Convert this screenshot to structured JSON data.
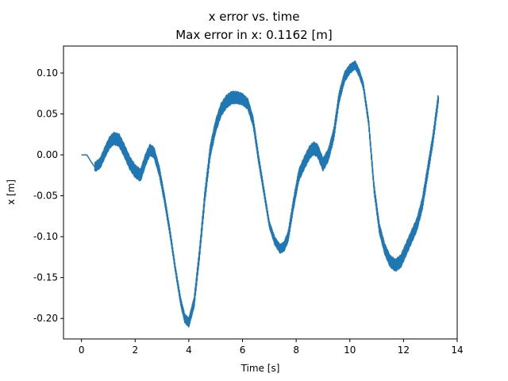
{
  "chart_data": {
    "type": "line",
    "title": "x error vs. time",
    "subtitle": "Max error in x: 0.1162 [m]",
    "xlabel": "Time [s]",
    "ylabel": "x [m]",
    "xlim": [
      -0.67,
      14.0
    ],
    "ylim": [
      -0.225,
      0.133
    ],
    "xticks": [
      0,
      2,
      4,
      6,
      8,
      10,
      12,
      14
    ],
    "yticks": [
      -0.2,
      -0.15,
      -0.1,
      -0.05,
      0.0,
      0.05,
      0.1
    ],
    "xtick_labels": [
      "0",
      "2",
      "4",
      "6",
      "8",
      "10",
      "12",
      "14"
    ],
    "ytick_labels": [
      "-0.20",
      "-0.15",
      "-0.10",
      "-0.05",
      "0.00",
      "0.05",
      "0.10"
    ],
    "grid": false,
    "series": [
      {
        "color": "#1f77b4",
        "x": [
          0.0,
          0.2,
          0.35,
          0.5,
          0.7,
          0.9,
          1.05,
          1.2,
          1.4,
          1.6,
          1.8,
          2.0,
          2.2,
          2.4,
          2.55,
          2.7,
          2.9,
          3.1,
          3.3,
          3.5,
          3.7,
          3.85,
          4.0,
          4.2,
          4.4,
          4.6,
          4.8,
          5.0,
          5.2,
          5.4,
          5.6,
          5.8,
          6.0,
          6.2,
          6.4,
          6.6,
          6.8,
          7.0,
          7.2,
          7.4,
          7.55,
          7.7,
          7.9,
          8.1,
          8.3,
          8.5,
          8.65,
          8.8,
          9.0,
          9.2,
          9.4,
          9.6,
          9.8,
          10.0,
          10.2,
          10.35,
          10.5,
          10.7,
          10.9,
          11.1,
          11.3,
          11.5,
          11.7,
          11.9,
          12.1,
          12.3,
          12.5,
          12.7,
          12.9,
          13.1,
          13.3
        ],
        "y": [
          0.0,
          0.0,
          -0.008,
          -0.015,
          -0.01,
          0.005,
          0.015,
          0.02,
          0.018,
          0.005,
          -0.01,
          -0.02,
          -0.025,
          -0.005,
          0.006,
          0.003,
          -0.02,
          -0.055,
          -0.095,
          -0.14,
          -0.18,
          -0.2,
          -0.205,
          -0.18,
          -0.12,
          -0.05,
          0.005,
          0.035,
          0.055,
          0.065,
          0.07,
          0.07,
          0.068,
          0.062,
          0.04,
          -0.005,
          -0.045,
          -0.085,
          -0.105,
          -0.115,
          -0.112,
          -0.1,
          -0.06,
          -0.025,
          -0.01,
          0.003,
          0.008,
          0.005,
          -0.012,
          0.0,
          0.025,
          0.07,
          0.095,
          0.105,
          0.11,
          0.1,
          0.085,
          0.04,
          -0.04,
          -0.09,
          -0.115,
          -0.13,
          -0.135,
          -0.13,
          -0.115,
          -0.1,
          -0.085,
          -0.06,
          -0.02,
          0.02,
          0.07
        ],
        "oscillation_amplitude": 0.008
      }
    ]
  }
}
